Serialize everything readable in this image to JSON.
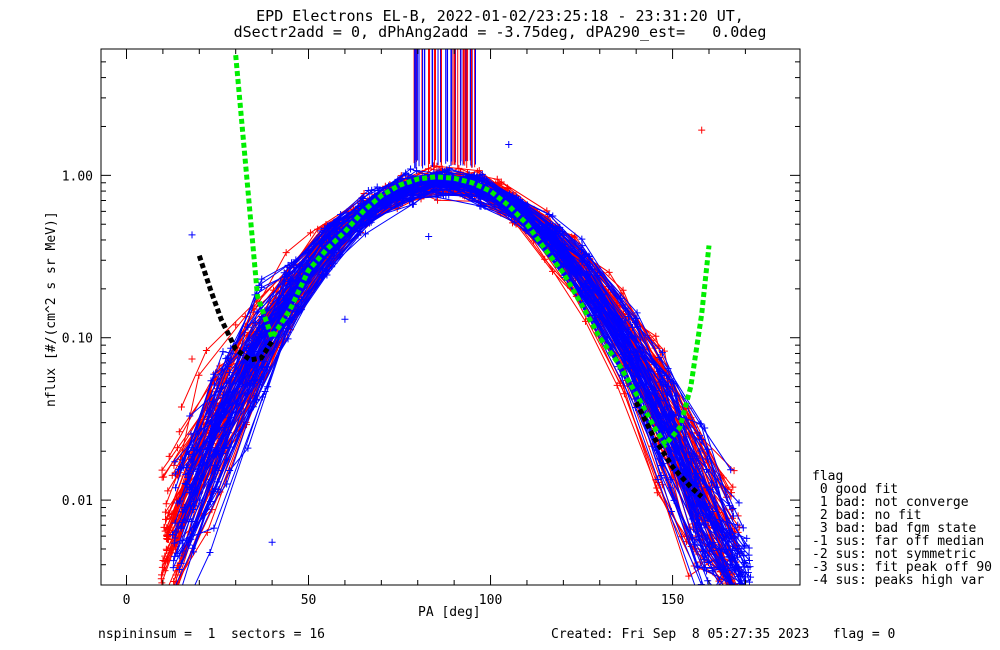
{
  "title_line1": "EPD Electrons EL-B, 2022-01-02/23:25:18 - 23:31:20 UT,",
  "title_line2": "dSectr2add = 0, dPhAng2add = -3.75deg, dPA290_est=   0.0deg",
  "ylabel": "nflux [#/(cm^2 s sr MeV)]",
  "xlabel": "PA [deg]",
  "legend": {
    "title": "flag",
    "items": [
      " 0 good fit",
      " 1 bad: not converge",
      " 2 bad: no fit",
      " 3 bad: bad fgm state",
      "-1 sus: far off median",
      "-2 sus: not symmetric",
      "-3 sus: fit peak off 90",
      "-4 sus: peaks high var"
    ]
  },
  "footer": {
    "left": "nspininsum =  1  sectors = 16",
    "right": "Created: Fri Sep  8 05:27:35 2023   flag = 0"
  },
  "colors": {
    "red_series": "#ff0000",
    "blue_series": "#0000ff",
    "fit_green": "#00ee00",
    "fit_black": "#000000"
  },
  "chart_data": {
    "type": "line",
    "title": "EPD Electrons EL-B, 2022-01-02/23:25:18 - 23:31:20 UT,",
    "subtitle": "dSectr2add = 0, dPhAng2add = -3.75deg, dPA290_est=   0.0deg",
    "xlabel": "PA [deg]",
    "ylabel": "nflux [#/(cm^2 s sr MeV)]",
    "xlim": [
      -7,
      185
    ],
    "ylim": [
      0.003,
      6
    ],
    "yscale": "log",
    "xticks": [
      0,
      50,
      100,
      150
    ],
    "xtick_labels": [
      "0",
      "50",
      "100",
      "150"
    ],
    "yticks": [
      0.01,
      0.1,
      1.0
    ],
    "ytick_labels": [
      "0.01",
      "0.10",
      "1.00"
    ],
    "series": [
      {
        "color": "red",
        "sample_points": [
          [
            14,
            0.021
          ],
          [
            20,
            0.011
          ],
          [
            27,
            0.045
          ],
          [
            35,
            0.09
          ],
          [
            42,
            0.15
          ],
          [
            50,
            0.35
          ],
          [
            57,
            0.5
          ],
          [
            65,
            0.72
          ],
          [
            72,
            0.86
          ],
          [
            80,
            0.93
          ],
          [
            87,
            0.95
          ],
          [
            95,
            0.9
          ],
          [
            102,
            0.8
          ],
          [
            110,
            0.6
          ],
          [
            117,
            0.37
          ],
          [
            125,
            0.18
          ],
          [
            132,
            0.1
          ],
          [
            140,
            0.052
          ],
          [
            147,
            0.031
          ],
          [
            155,
            0.018
          ],
          [
            162,
            0.012
          ],
          [
            168,
            0.008
          ],
          [
            158,
            1.9
          ],
          [
            18,
            0.074
          ],
          [
            30,
            0.12
          ]
        ]
      },
      {
        "color": "blue",
        "sample_points": [
          [
            18,
            0.43
          ],
          [
            20,
            0.01
          ],
          [
            27,
            0.04
          ],
          [
            35,
            0.09
          ],
          [
            42,
            0.14
          ],
          [
            50,
            0.3
          ],
          [
            57,
            0.5
          ],
          [
            65,
            0.72
          ],
          [
            72,
            0.86
          ],
          [
            80,
            0.95
          ],
          [
            87,
            0.97
          ],
          [
            95,
            0.92
          ],
          [
            105,
            1.55
          ],
          [
            110,
            0.6
          ],
          [
            117,
            0.37
          ],
          [
            125,
            0.18
          ],
          [
            132,
            0.1
          ],
          [
            140,
            0.05
          ],
          [
            147,
            0.03
          ],
          [
            155,
            0.018
          ],
          [
            162,
            0.012
          ],
          [
            168,
            0.006
          ],
          [
            40,
            0.0055
          ],
          [
            60,
            0.13
          ],
          [
            83,
            0.42
          ]
        ]
      },
      {
        "name": "fit (green)",
        "color": "green",
        "points": [
          [
            30,
            5.5
          ],
          [
            33,
            1.0
          ],
          [
            36,
            0.18
          ],
          [
            40,
            0.1
          ],
          [
            45,
            0.15
          ],
          [
            50,
            0.26
          ],
          [
            55,
            0.35
          ],
          [
            60,
            0.45
          ],
          [
            65,
            0.6
          ],
          [
            70,
            0.75
          ],
          [
            75,
            0.87
          ],
          [
            80,
            0.95
          ],
          [
            85,
            0.98
          ],
          [
            90,
            0.96
          ],
          [
            95,
            0.9
          ],
          [
            100,
            0.8
          ],
          [
            105,
            0.65
          ],
          [
            110,
            0.5
          ],
          [
            115,
            0.35
          ],
          [
            120,
            0.25
          ],
          [
            125,
            0.16
          ],
          [
            130,
            0.1
          ],
          [
            135,
            0.07
          ],
          [
            140,
            0.045
          ],
          [
            145,
            0.028
          ],
          [
            148,
            0.022
          ],
          [
            152,
            0.028
          ],
          [
            155,
            0.05
          ],
          [
            158,
            0.14
          ],
          [
            160,
            0.37
          ]
        ]
      },
      {
        "name": "fit (black)",
        "color": "black",
        "points": [
          [
            20,
            0.32
          ],
          [
            23,
            0.2
          ],
          [
            26,
            0.13
          ],
          [
            30,
            0.085
          ],
          [
            34,
            0.073
          ],
          [
            37,
            0.075
          ],
          [
            40,
            0.095
          ]
        ]
      },
      {
        "name": "fit tail (black)",
        "color": "black",
        "points": [
          [
            140,
            0.04
          ],
          [
            145,
            0.024
          ],
          [
            150,
            0.016
          ],
          [
            155,
            0.012
          ],
          [
            158,
            0.0105
          ]
        ]
      }
    ]
  }
}
